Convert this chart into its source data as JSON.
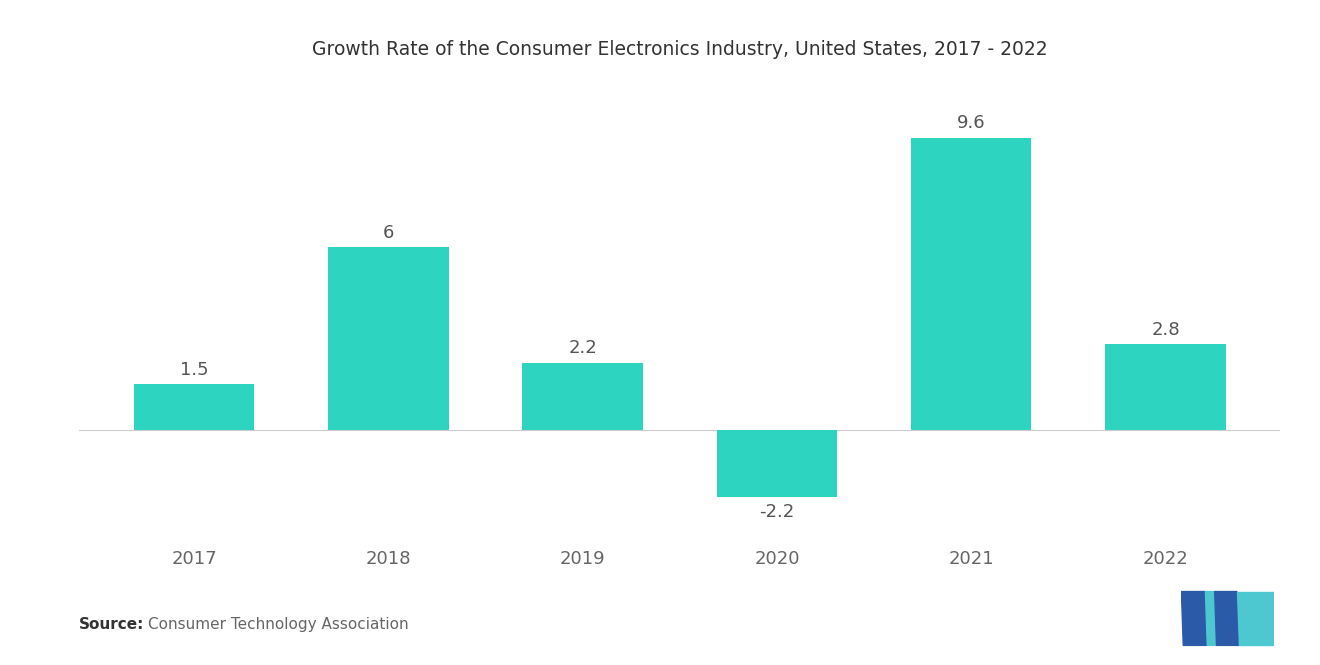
{
  "title": "Growth Rate of the Consumer Electronics Industry, United States, 2017 - 2022",
  "categories": [
    "2017",
    "2018",
    "2019",
    "2020",
    "2021",
    "2022"
  ],
  "values": [
    1.5,
    6.0,
    2.2,
    -2.2,
    9.6,
    2.8
  ],
  "bar_color": "#2DD4C0",
  "background_color": "#ffffff",
  "title_fontsize": 13.5,
  "label_fontsize": 13,
  "tick_fontsize": 13,
  "source_bold": "Source:",
  "source_normal": "  Consumer Technology Association",
  "ylim": [
    -3.8,
    11.5
  ],
  "bar_width": 0.62,
  "label_color": "#555555",
  "tick_color": "#666666",
  "title_color": "#333333",
  "logo_dark": "#2B5BA8",
  "logo_light": "#4DC8D0"
}
